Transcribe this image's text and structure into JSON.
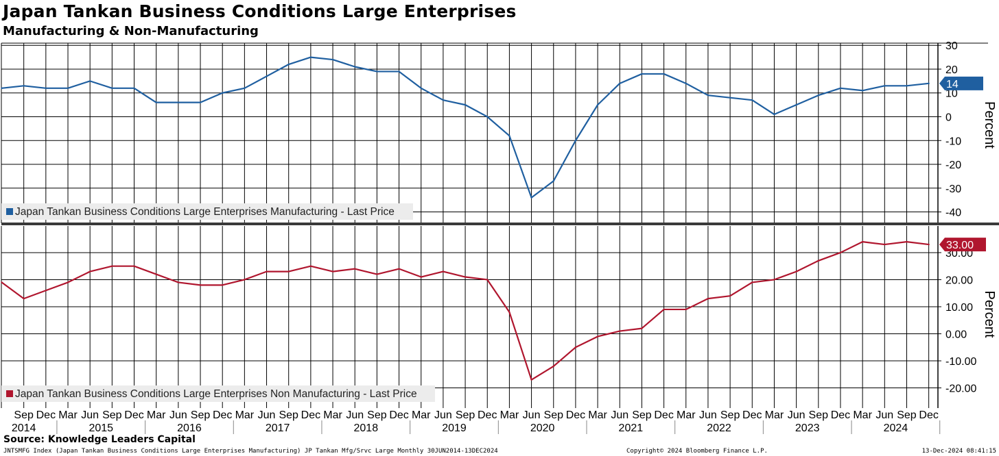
{
  "header": {
    "title": "Japan Tankan Business Conditions Large Enterprises",
    "subtitle": "Manufacturing & Non-Manufacturing"
  },
  "footer": {
    "source": "Source: Knowledge Leaders Capital",
    "index_info": "JNTSMFG Index (Japan Tankan Business Conditions Large Enterprises Manufacturing) JP Tankan Mfg/Srvc Large  Monthly 30JUN2014-13DEC2024",
    "copyright": "Copyright© 2024 Bloomberg Finance L.P.",
    "timestamp": "13-Dec-2024 08:41:15"
  },
  "colors": {
    "manufacturing": "#1f5fa0",
    "non_manufacturing": "#b0162e",
    "grid": "#000000"
  },
  "chart_data": [
    {
      "type": "line",
      "name": "Japan Tankan Business Conditions Large Enterprises Manufacturing - Last Price",
      "legend": "Japan Tankan Business Conditions Large Enterprises Manufacturing - Last Price",
      "ylabel": "Percent",
      "ylim": [
        -44,
        33
      ],
      "yticks": [
        30,
        20,
        10,
        0,
        -10,
        -20,
        -30,
        -40
      ],
      "ytick_labels": [
        "30",
        "20",
        "10",
        "0",
        "-10",
        "-20",
        "-30",
        "-40"
      ],
      "last_value_label": "14",
      "x": [
        "Jun 2014",
        "Sep 2014",
        "Dec 2014",
        "Mar 2015",
        "Jun 2015",
        "Sep 2015",
        "Dec 2015",
        "Mar 2016",
        "Jun 2016",
        "Sep 2016",
        "Dec 2016",
        "Mar 2017",
        "Jun 2017",
        "Sep 2017",
        "Dec 2017",
        "Mar 2018",
        "Jun 2018",
        "Sep 2018",
        "Dec 2018",
        "Mar 2019",
        "Jun 2019",
        "Sep 2019",
        "Dec 2019",
        "Mar 2020",
        "Jun 2020",
        "Sep 2020",
        "Dec 2020",
        "Mar 2021",
        "Jun 2021",
        "Sep 2021",
        "Dec 2021",
        "Mar 2022",
        "Jun 2022",
        "Sep 2022",
        "Dec 2022",
        "Mar 2023",
        "Jun 2023",
        "Sep 2023",
        "Dec 2023",
        "Mar 2024",
        "Jun 2024",
        "Sep 2024",
        "Dec 2024"
      ],
      "values": [
        12,
        13,
        12,
        12,
        15,
        12,
        12,
        6,
        6,
        6,
        10,
        12,
        17,
        22,
        25,
        24,
        21,
        19,
        19,
        12,
        7,
        5,
        0,
        -8,
        -34,
        -27,
        -10,
        5,
        14,
        18,
        18,
        14,
        9,
        8,
        7,
        1,
        5,
        9,
        12,
        11,
        13,
        13,
        14
      ]
    },
    {
      "type": "line",
      "name": "Japan Tankan Business Conditions Large Enterprises Non Manufacturing - Last Price",
      "legend": "Japan Tankan Business Conditions Large Enterprises Non Manufacturing - Last Price",
      "ylabel": "Percent",
      "ylim": [
        -25,
        38
      ],
      "yticks": [
        30,
        20,
        10,
        0,
        -10,
        -20
      ],
      "ytick_labels": [
        "30.00",
        "20.00",
        "10.00",
        "0.00",
        "-10.00",
        "-20.00"
      ],
      "last_value_label": "33.00",
      "x": [
        "Jun 2014",
        "Sep 2014",
        "Dec 2014",
        "Mar 2015",
        "Jun 2015",
        "Sep 2015",
        "Dec 2015",
        "Mar 2016",
        "Jun 2016",
        "Sep 2016",
        "Dec 2016",
        "Mar 2017",
        "Jun 2017",
        "Sep 2017",
        "Dec 2017",
        "Mar 2018",
        "Jun 2018",
        "Sep 2018",
        "Dec 2018",
        "Mar 2019",
        "Jun 2019",
        "Sep 2019",
        "Dec 2019",
        "Mar 2020",
        "Jun 2020",
        "Sep 2020",
        "Dec 2020",
        "Mar 2021",
        "Jun 2021",
        "Sep 2021",
        "Dec 2021",
        "Mar 2022",
        "Jun 2022",
        "Sep 2022",
        "Dec 2022",
        "Mar 2023",
        "Jun 2023",
        "Sep 2023",
        "Dec 2023",
        "Mar 2024",
        "Jun 2024",
        "Sep 2024",
        "Dec 2024"
      ],
      "values": [
        19,
        13,
        16,
        19,
        23,
        25,
        25,
        22,
        19,
        18,
        18,
        20,
        23,
        23,
        25,
        23,
        24,
        22,
        24,
        21,
        23,
        21,
        20,
        8,
        -17,
        -12,
        -5,
        -1,
        1,
        2,
        9,
        9,
        13,
        14,
        19,
        20,
        23,
        27,
        30,
        34,
        33,
        34,
        33
      ]
    }
  ],
  "x_axis": {
    "quarters": [
      "Sep",
      "Dec",
      "Mar",
      "Jun",
      "Sep",
      "Dec",
      "Mar",
      "Jun",
      "Sep",
      "Dec",
      "Mar",
      "Jun",
      "Sep",
      "Dec",
      "Mar",
      "Jun",
      "Sep",
      "Dec",
      "Mar",
      "Jun",
      "Sep",
      "Dec",
      "Mar",
      "Jun",
      "Sep",
      "Dec",
      "Mar",
      "Jun",
      "Sep",
      "Dec",
      "Mar",
      "Jun",
      "Sep",
      "Dec",
      "Mar",
      "Jun",
      "Sep",
      "Dec",
      "Mar",
      "Jun",
      "Sep",
      "Dec"
    ],
    "years": [
      "2014",
      "2015",
      "2016",
      "2017",
      "2018",
      "2019",
      "2020",
      "2021",
      "2022",
      "2023",
      "2024"
    ]
  }
}
